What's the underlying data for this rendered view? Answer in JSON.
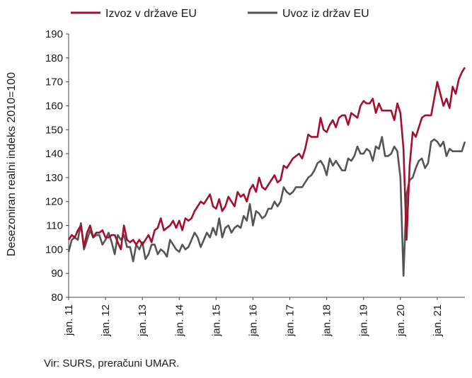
{
  "chart_data": {
    "type": "line",
    "ylabel": "Desezoniran realni indeks 2010=100",
    "xlabel": "",
    "ylim": [
      80,
      190
    ],
    "yticks": [
      80,
      90,
      100,
      110,
      120,
      130,
      140,
      150,
      160,
      170,
      180,
      190
    ],
    "x_tick_labels": [
      "jan. 11",
      "jan. 12",
      "jan. 13",
      "jan. 14",
      "jan. 15",
      "jan. 16",
      "jan. 17",
      "jan. 18",
      "jan. 19",
      "jan. 20",
      "jan. 21"
    ],
    "x_start": "2011-01",
    "frequency": "monthly",
    "legend_position": "top",
    "grid": false,
    "series": [
      {
        "name": "Izvoz v države EU",
        "color": "#a50f2d",
        "values": [
          104,
          106,
          105,
          108,
          110,
          101,
          107,
          110,
          105,
          107,
          107,
          108,
          105,
          105,
          106,
          106,
          103,
          100,
          110,
          104,
          103,
          104,
          102,
          104,
          102,
          104,
          106,
          103,
          108,
          109,
          113,
          108,
          109,
          110,
          112,
          109,
          112,
          108,
          113,
          112,
          113,
          116,
          118,
          120,
          119,
          121,
          123,
          118,
          117,
          121,
          116,
          118,
          122,
          120,
          118,
          124,
          122,
          123,
          120,
          125,
          127,
          124,
          130,
          126,
          125,
          127,
          129,
          131,
          128,
          129,
          135,
          134,
          136,
          138,
          139,
          140,
          138,
          142,
          148,
          147,
          147,
          147,
          155,
          150,
          149,
          152,
          154,
          151,
          155,
          156,
          156,
          152,
          157,
          156,
          155,
          160,
          162,
          161,
          161,
          163,
          157,
          161,
          158,
          158,
          158,
          158,
          154,
          161,
          157,
          142,
          104,
          135,
          149,
          147,
          151,
          155,
          156,
          156,
          156,
          163,
          170,
          165,
          160,
          163,
          159,
          168,
          165,
          171,
          174,
          176
        ]
      },
      {
        "name": "Uvoz iz držav EU",
        "color": "#555555",
        "values": [
          99,
          104,
          105,
          104,
          111,
          100,
          104,
          108,
          105,
          106,
          106,
          102,
          104,
          107,
          103,
          98,
          106,
          104,
          106,
          101,
          101,
          95,
          102,
          100,
          103,
          96,
          98,
          102,
          102,
          98,
          100,
          99,
          97,
          104,
          102,
          100,
          99,
          102,
          100,
          101,
          104,
          107,
          105,
          101,
          104,
          107,
          105,
          109,
          106,
          113,
          105,
          109,
          110,
          107,
          109,
          110,
          109,
          114,
          112,
          119,
          110,
          116,
          115,
          113,
          114,
          117,
          117,
          120,
          118,
          120,
          126,
          124,
          123,
          124,
          126,
          126,
          126,
          128,
          130,
          131,
          133,
          136,
          137,
          135,
          131,
          138,
          135,
          137,
          135,
          133,
          133,
          138,
          137,
          139,
          143,
          140,
          140,
          142,
          141,
          137,
          143,
          142,
          147,
          139,
          139,
          140,
          143,
          141,
          130,
          89,
          123,
          129,
          130,
          134,
          137,
          138,
          134,
          136,
          145,
          146,
          145,
          143,
          145,
          139,
          142,
          141,
          141,
          141,
          141,
          145
        ]
      }
    ]
  },
  "source_note": "Vir: SURS, preračuni UMAR."
}
